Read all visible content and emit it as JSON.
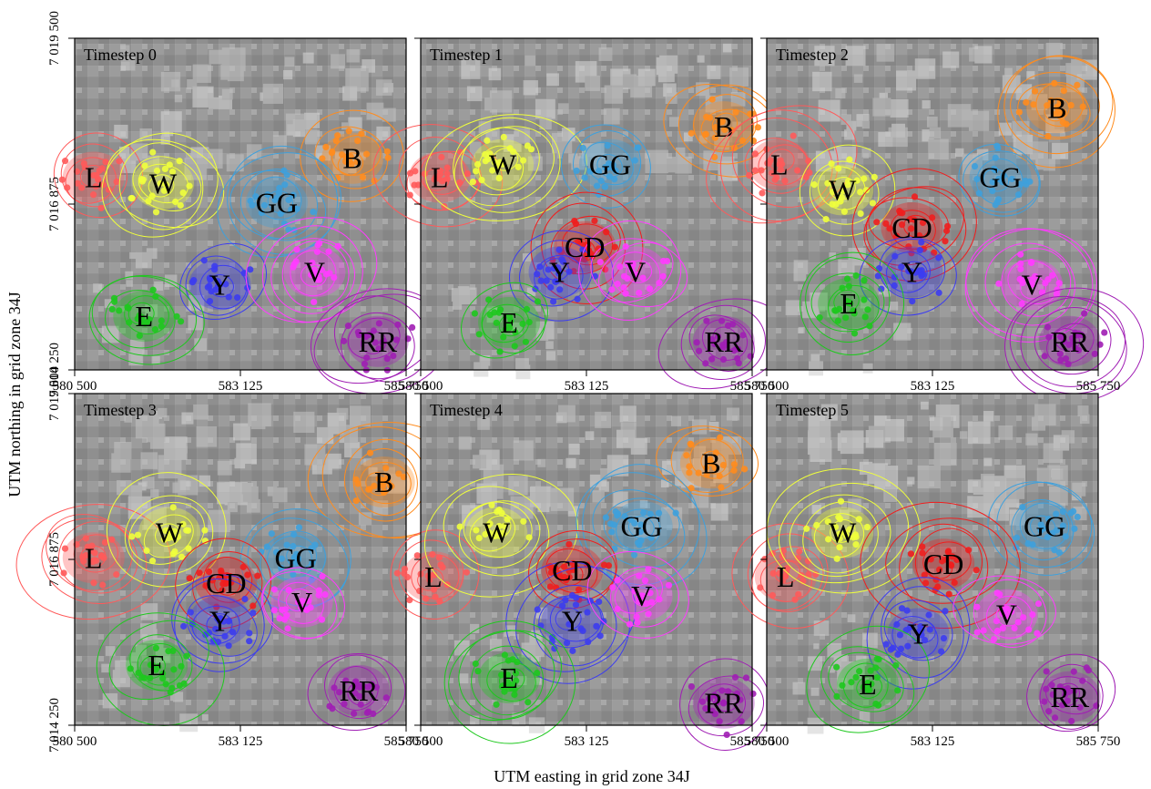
{
  "figure": {
    "xlabel": "UTM easting in grid zone 34J",
    "ylabel": "UTM northing in grid zone 34J",
    "x_ticks": [
      "580 500",
      "583 125",
      "585 750"
    ],
    "y_ticks": [
      "7 014 250",
      "7 016 875",
      "7 019 500"
    ],
    "x_range": [
      580500,
      585750
    ],
    "y_range": [
      7014250,
      7019500
    ]
  },
  "colors": {
    "L": "#ff5a5a",
    "W": "#f0ff3c",
    "GG": "#3ea0dc",
    "B": "#ff8c1e",
    "E": "#1ec81e",
    "Y": "#3c3cf0",
    "V": "#ff3cff",
    "RR": "#a01eb4",
    "CD": "#f01e1e"
  },
  "panels": [
    {
      "title": "Timestep 0",
      "groups": [
        {
          "id": "L",
          "label": "L",
          "x": 580800,
          "y": 7017300
        },
        {
          "id": "W",
          "label": "W",
          "x": 581900,
          "y": 7017200
        },
        {
          "id": "B",
          "label": "B",
          "x": 584900,
          "y": 7017600
        },
        {
          "id": "GG",
          "label": "GG",
          "x": 583700,
          "y": 7016900
        },
        {
          "id": "Y",
          "label": "Y",
          "x": 582800,
          "y": 7015600
        },
        {
          "id": "V",
          "label": "V",
          "x": 584300,
          "y": 7015800
        },
        {
          "id": "E",
          "label": "E",
          "x": 581600,
          "y": 7015100
        },
        {
          "id": "RR",
          "label": "RR",
          "x": 585300,
          "y": 7014700
        }
      ]
    },
    {
      "title": "Timestep 1",
      "groups": [
        {
          "id": "L",
          "label": "L",
          "x": 580800,
          "y": 7017300
        },
        {
          "id": "W",
          "label": "W",
          "x": 581800,
          "y": 7017500
        },
        {
          "id": "B",
          "label": "B",
          "x": 585300,
          "y": 7018100
        },
        {
          "id": "GG",
          "label": "GG",
          "x": 583500,
          "y": 7017500
        },
        {
          "id": "CD",
          "label": "CD",
          "x": 583100,
          "y": 7016200
        },
        {
          "id": "Y",
          "label": "Y",
          "x": 582700,
          "y": 7015800
        },
        {
          "id": "V",
          "label": "V",
          "x": 583900,
          "y": 7015800
        },
        {
          "id": "E",
          "label": "E",
          "x": 581900,
          "y": 7015000
        },
        {
          "id": "RR",
          "label": "RR",
          "x": 585300,
          "y": 7014700
        }
      ]
    },
    {
      "title": "Timestep 2",
      "groups": [
        {
          "id": "L",
          "label": "L",
          "x": 580700,
          "y": 7017500
        },
        {
          "id": "W",
          "label": "W",
          "x": 581700,
          "y": 7017100
        },
        {
          "id": "B",
          "label": "B",
          "x": 585100,
          "y": 7018400
        },
        {
          "id": "GG",
          "label": "GG",
          "x": 584200,
          "y": 7017300
        },
        {
          "id": "CD",
          "label": "CD",
          "x": 582800,
          "y": 7016500
        },
        {
          "id": "Y",
          "label": "Y",
          "x": 582800,
          "y": 7015800
        },
        {
          "id": "V",
          "label": "V",
          "x": 584700,
          "y": 7015600
        },
        {
          "id": "E",
          "label": "E",
          "x": 581800,
          "y": 7015300
        },
        {
          "id": "RR",
          "label": "RR",
          "x": 585300,
          "y": 7014700
        }
      ]
    },
    {
      "title": "Timestep 3",
      "groups": [
        {
          "id": "L",
          "label": "L",
          "x": 580800,
          "y": 7016900
        },
        {
          "id": "W",
          "label": "W",
          "x": 582000,
          "y": 7017300
        },
        {
          "id": "B",
          "label": "B",
          "x": 585400,
          "y": 7018100
        },
        {
          "id": "GG",
          "label": "GG",
          "x": 584000,
          "y": 7016900
        },
        {
          "id": "CD",
          "label": "CD",
          "x": 582900,
          "y": 7016500
        },
        {
          "id": "Y",
          "label": "Y",
          "x": 582800,
          "y": 7015900
        },
        {
          "id": "V",
          "label": "V",
          "x": 584100,
          "y": 7016200
        },
        {
          "id": "E",
          "label": "E",
          "x": 581800,
          "y": 7015200
        },
        {
          "id": "RR",
          "label": "RR",
          "x": 585000,
          "y": 7014800
        }
      ]
    },
    {
      "title": "Timestep 4",
      "groups": [
        {
          "id": "L",
          "label": "L",
          "x": 580700,
          "y": 7016600
        },
        {
          "id": "W",
          "label": "W",
          "x": 581700,
          "y": 7017300
        },
        {
          "id": "B",
          "label": "B",
          "x": 585100,
          "y": 7018400
        },
        {
          "id": "GG",
          "label": "GG",
          "x": 584000,
          "y": 7017400
        },
        {
          "id": "CD",
          "label": "CD",
          "x": 582900,
          "y": 7016700
        },
        {
          "id": "Y",
          "label": "Y",
          "x": 582900,
          "y": 7015900
        },
        {
          "id": "V",
          "label": "V",
          "x": 584000,
          "y": 7016300
        },
        {
          "id": "E",
          "label": "E",
          "x": 581900,
          "y": 7015000
        },
        {
          "id": "RR",
          "label": "RR",
          "x": 585300,
          "y": 7014600
        }
      ]
    },
    {
      "title": "Timestep 5",
      "groups": [
        {
          "id": "L",
          "label": "L",
          "x": 580800,
          "y": 7016600
        },
        {
          "id": "W",
          "label": "W",
          "x": 581700,
          "y": 7017300
        },
        {
          "id": "GG",
          "label": "GG",
          "x": 584900,
          "y": 7017400
        },
        {
          "id": "CD",
          "label": "CD",
          "x": 583300,
          "y": 7016800
        },
        {
          "id": "Y",
          "label": "Y",
          "x": 582900,
          "y": 7015700
        },
        {
          "id": "V",
          "label": "V",
          "x": 584300,
          "y": 7016000
        },
        {
          "id": "E",
          "label": "E",
          "x": 582100,
          "y": 7014900
        },
        {
          "id": "RR",
          "label": "RR",
          "x": 585300,
          "y": 7014700
        }
      ]
    }
  ]
}
